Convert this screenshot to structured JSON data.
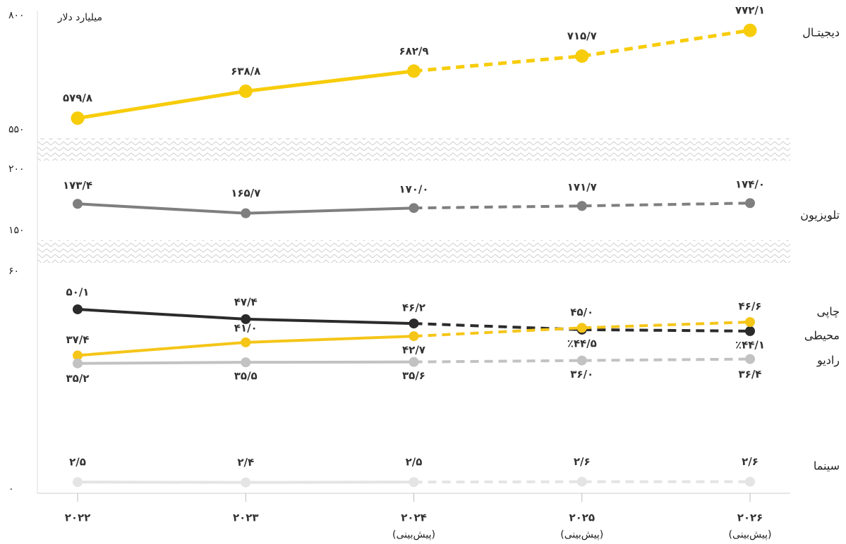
{
  "chart_data": {
    "type": "line",
    "y_label": "میلیارد دلار",
    "categories": [
      "۲۰۲۲",
      "۲۰۲۳",
      "۲۰۲۴",
      "۲۰۲۵",
      "۲۰۲۶"
    ],
    "category_sublabels": [
      null,
      null,
      "(پیش‌بینی)",
      "(پیش‌بینی)",
      "(پیش‌بینی)"
    ],
    "ylim": [
      0,
      800
    ],
    "axis_breaks": [
      [
        60,
        150
      ],
      [
        200,
        550
      ]
    ],
    "yticks": [
      {
        "value": 0,
        "label": "۰"
      },
      {
        "value": 60,
        "label": "۶۰"
      },
      {
        "value": 150,
        "label": "۱۵۰"
      },
      {
        "value": 200,
        "label": "۲۰۰"
      },
      {
        "value": 550,
        "label": "۵۵۰"
      },
      {
        "value": 800,
        "label": "۸۰۰"
      }
    ],
    "series": [
      {
        "name": "دیجیتـال",
        "color": "#f7cc0a",
        "values": [
          579.8,
          638.8,
          682.9,
          715.7,
          772.1
        ],
        "value_labels": [
          "۵۷۹/۸",
          "۶۳۸/۸",
          "۶۸۲/۹",
          "۷۱۵/۷",
          "۷۷۲/۱"
        ]
      },
      {
        "name": "تلویزیون",
        "color": "#7f7f7f",
        "values": [
          173.4,
          165.7,
          170.0,
          171.7,
          174.0
        ],
        "value_labels": [
          "۱۷۳/۴",
          "۱۶۵/۷",
          "۱۷۰/۰",
          "۱۷۱/۷",
          "۱۷۴/۰"
        ]
      },
      {
        "name": "چاپی",
        "color": "#2b2b2b",
        "values": [
          50.1,
          47.4,
          46.2,
          44.5,
          44.1
        ],
        "value_labels": [
          "۵۰/۱",
          "۴۷/۴",
          "۴۶/۲",
          "٪۴۴/۵",
          "٪۴۴/۱"
        ]
      },
      {
        "name": "محیطی",
        "color": "#f5c518",
        "values": [
          37.4,
          41.0,
          42.7,
          45.0,
          46.6
        ],
        "value_labels": [
          "۳۷/۴",
          "۴۱/۰",
          "۴۲/۷",
          "۴۵/۰",
          "۴۶/۶"
        ]
      },
      {
        "name": "رادیو",
        "color": "#c2c2c2",
        "values": [
          35.2,
          35.5,
          35.6,
          36.0,
          36.4
        ],
        "value_labels": [
          "۳۵/۲",
          "۳۵/۵",
          "۳۵/۶",
          "۳۶/۰",
          "۳۶/۴"
        ]
      },
      {
        "name": "سینما",
        "color": "#e4e4e4",
        "values": [
          2.5,
          2.4,
          2.5,
          2.6,
          2.6
        ],
        "value_labels": [
          "۲/۵",
          "۲/۴",
          "۲/۵",
          "۲/۶",
          "۲/۶"
        ]
      }
    ]
  }
}
